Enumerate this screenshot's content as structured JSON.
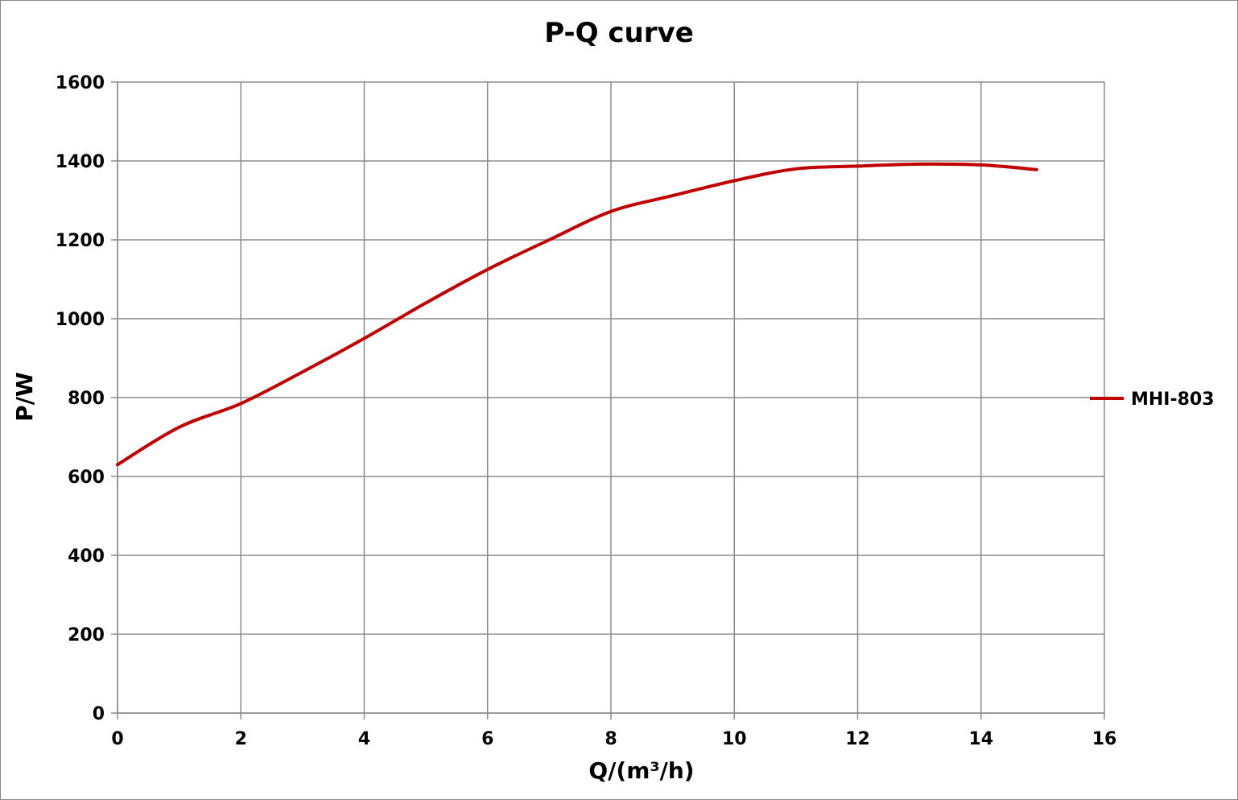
{
  "chart_data": {
    "type": "line",
    "title": "P-Q  curve",
    "xlabel": "Q/(m³/h)",
    "ylabel": "P/W",
    "xlim": [
      0,
      16
    ],
    "ylim": [
      0,
      1600
    ],
    "x_ticks": [
      "0",
      "2",
      "4",
      "6",
      "8",
      "10",
      "12",
      "14",
      "16"
    ],
    "y_ticks": [
      "0",
      "200",
      "400",
      "600",
      "800",
      "1000",
      "1200",
      "1400",
      "1600"
    ],
    "grid": true,
    "legend_position": "right",
    "series": [
      {
        "name": "MHI-803",
        "color": "#c00000",
        "x": [
          0,
          1,
          2,
          3,
          4,
          5,
          6,
          7,
          8,
          9,
          10,
          11,
          12,
          13,
          14,
          14.9
        ],
        "y": [
          630,
          725,
          785,
          865,
          950,
          1040,
          1125,
          1200,
          1272,
          1312,
          1350,
          1380,
          1387,
          1392,
          1390,
          1378
        ]
      }
    ]
  }
}
